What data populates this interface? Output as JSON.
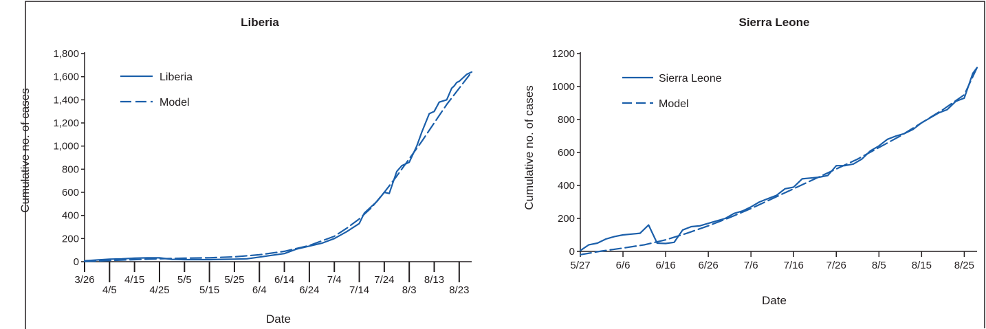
{
  "colors": {
    "series": "#1b5faa",
    "axis": "#231f20",
    "text": "#231f20"
  },
  "chart_data": [
    {
      "type": "line",
      "title": "Liberia",
      "xlabel": "Date",
      "ylabel": "Cumulative no. of  cases",
      "x_tick_labels_upper": [
        "3/26",
        "4/15",
        "5/5",
        "5/25",
        "6/14",
        "7/4",
        "7/24",
        "8/13"
      ],
      "x_tick_labels_lower": [
        "4/5",
        "4/25",
        "5/15",
        "6/4",
        "6/24",
        "7/14",
        "8/3",
        "8/23"
      ],
      "y_tick_labels": [
        "0",
        "200",
        "400",
        "600",
        "800",
        "1,000",
        "1,200",
        "1,400",
        "1,600",
        "1,800"
      ],
      "ylim": [
        0,
        1800
      ],
      "legend_position": "top-left",
      "x_unit": "days since 3/26",
      "xlim": [
        0,
        155
      ],
      "series": [
        {
          "name": "Liberia",
          "style": "solid",
          "x": [
            0,
            5,
            10,
            15,
            20,
            25,
            30,
            35,
            40,
            45,
            50,
            55,
            60,
            65,
            70,
            75,
            80,
            85,
            90,
            95,
            100,
            105,
            110,
            112,
            115,
            117,
            120,
            122,
            125,
            127,
            130,
            133,
            135,
            138,
            140,
            142,
            145,
            147,
            148,
            149,
            150,
            151,
            152,
            153,
            155
          ],
          "y": [
            8,
            15,
            22,
            25,
            30,
            33,
            33,
            20,
            18,
            18,
            18,
            20,
            22,
            25,
            40,
            55,
            70,
            110,
            135,
            160,
            200,
            260,
            330,
            420,
            480,
            520,
            600,
            590,
            780,
            830,
            860,
            1000,
            1120,
            1280,
            1300,
            1380,
            1400,
            1500,
            1520,
            1550,
            1560,
            1580,
            1600,
            1620,
            1640
          ]
        },
        {
          "name": "Model",
          "style": "dashed",
          "x": [
            0,
            10,
            20,
            30,
            40,
            50,
            60,
            70,
            80,
            90,
            100,
            105,
            110,
            115,
            120,
            125,
            130,
            135,
            140,
            145,
            150,
            155
          ],
          "y": [
            2,
            10,
            18,
            25,
            30,
            34,
            42,
            60,
            90,
            140,
            220,
            290,
            370,
            470,
            600,
            740,
            890,
            1040,
            1200,
            1360,
            1500,
            1640
          ]
        }
      ]
    },
    {
      "type": "line",
      "title": "Sierra Leone",
      "xlabel": "Date",
      "ylabel": "Cumulative no. of  cases",
      "x_tick_labels": [
        "5/27",
        "6/6",
        "6/16",
        "6/26",
        "7/6",
        "7/16",
        "7/26",
        "8/5",
        "8/15",
        "8/25"
      ],
      "y_tick_labels": [
        "0",
        "200",
        "400",
        "600",
        "800",
        "1000",
        "1200"
      ],
      "ylim": [
        0,
        1200
      ],
      "legend_position": "top-left",
      "x_unit": "days since 5/27",
      "xlim": [
        0,
        93
      ],
      "series": [
        {
          "name": "Sierra Leone",
          "style": "solid",
          "x": [
            0,
            2,
            4,
            6,
            8,
            10,
            12,
            14,
            16,
            18,
            20,
            22,
            24,
            26,
            28,
            30,
            32,
            34,
            36,
            38,
            40,
            42,
            44,
            46,
            48,
            50,
            52,
            54,
            56,
            58,
            60,
            62,
            64,
            66,
            68,
            70,
            72,
            74,
            76,
            78,
            80,
            82,
            84,
            86,
            88,
            90,
            92,
            93
          ],
          "y": [
            5,
            40,
            50,
            75,
            90,
            100,
            105,
            110,
            160,
            50,
            48,
            55,
            130,
            150,
            155,
            170,
            185,
            200,
            230,
            245,
            270,
            300,
            320,
            340,
            380,
            390,
            440,
            445,
            450,
            460,
            520,
            520,
            530,
            560,
            610,
            640,
            680,
            700,
            715,
            740,
            780,
            810,
            840,
            860,
            910,
            930,
            1080,
            1115
          ]
        },
        {
          "name": "Model",
          "style": "dashed",
          "x": [
            0,
            5,
            10,
            15,
            20,
            25,
            30,
            35,
            40,
            45,
            50,
            55,
            60,
            65,
            70,
            75,
            80,
            85,
            90,
            93
          ],
          "y": [
            -20,
            2,
            20,
            40,
            70,
            110,
            155,
            205,
            260,
            320,
            380,
            440,
            500,
            560,
            630,
            700,
            780,
            860,
            950,
            1115
          ]
        }
      ]
    }
  ]
}
